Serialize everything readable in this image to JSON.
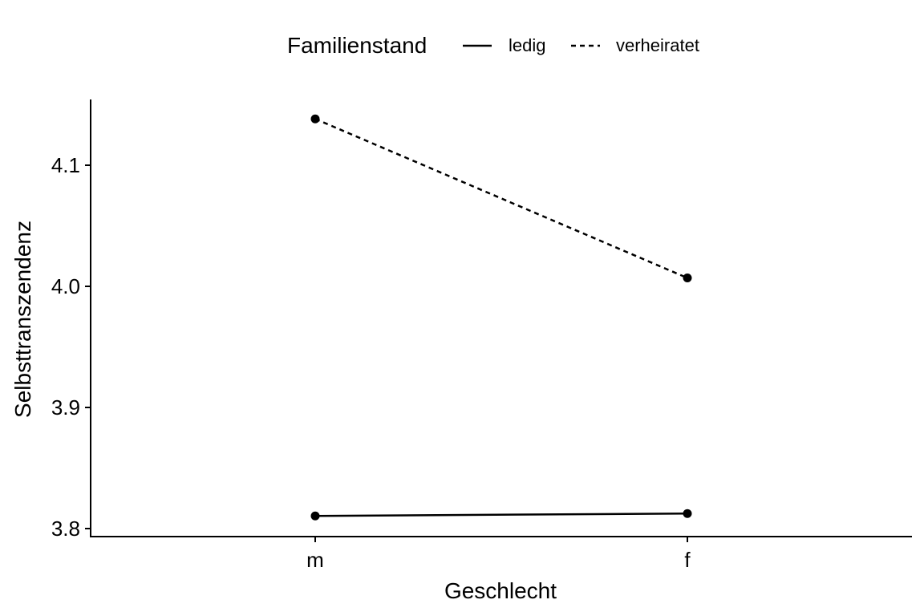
{
  "chart_data": {
    "type": "line",
    "xlabel": "Geschlecht",
    "ylabel": "Selbsttranszendenz",
    "categories": [
      "m",
      "f"
    ],
    "ylim": [
      3.792,
      4.152
    ],
    "yticks": [
      "3.8",
      "3.9",
      "4.0",
      "4.1"
    ],
    "legend": {
      "title": "Familienstand",
      "placement": "top"
    },
    "series": [
      {
        "name": "ledig",
        "linetype": "solid",
        "values": [
          3.809,
          3.811
        ]
      },
      {
        "name": "verheiratet",
        "linetype": "dashed",
        "values": [
          4.136,
          4.005
        ]
      }
    ],
    "grid": false,
    "colors": {
      "line": "#000000",
      "point": "#000000",
      "background": "#ffffff"
    }
  }
}
